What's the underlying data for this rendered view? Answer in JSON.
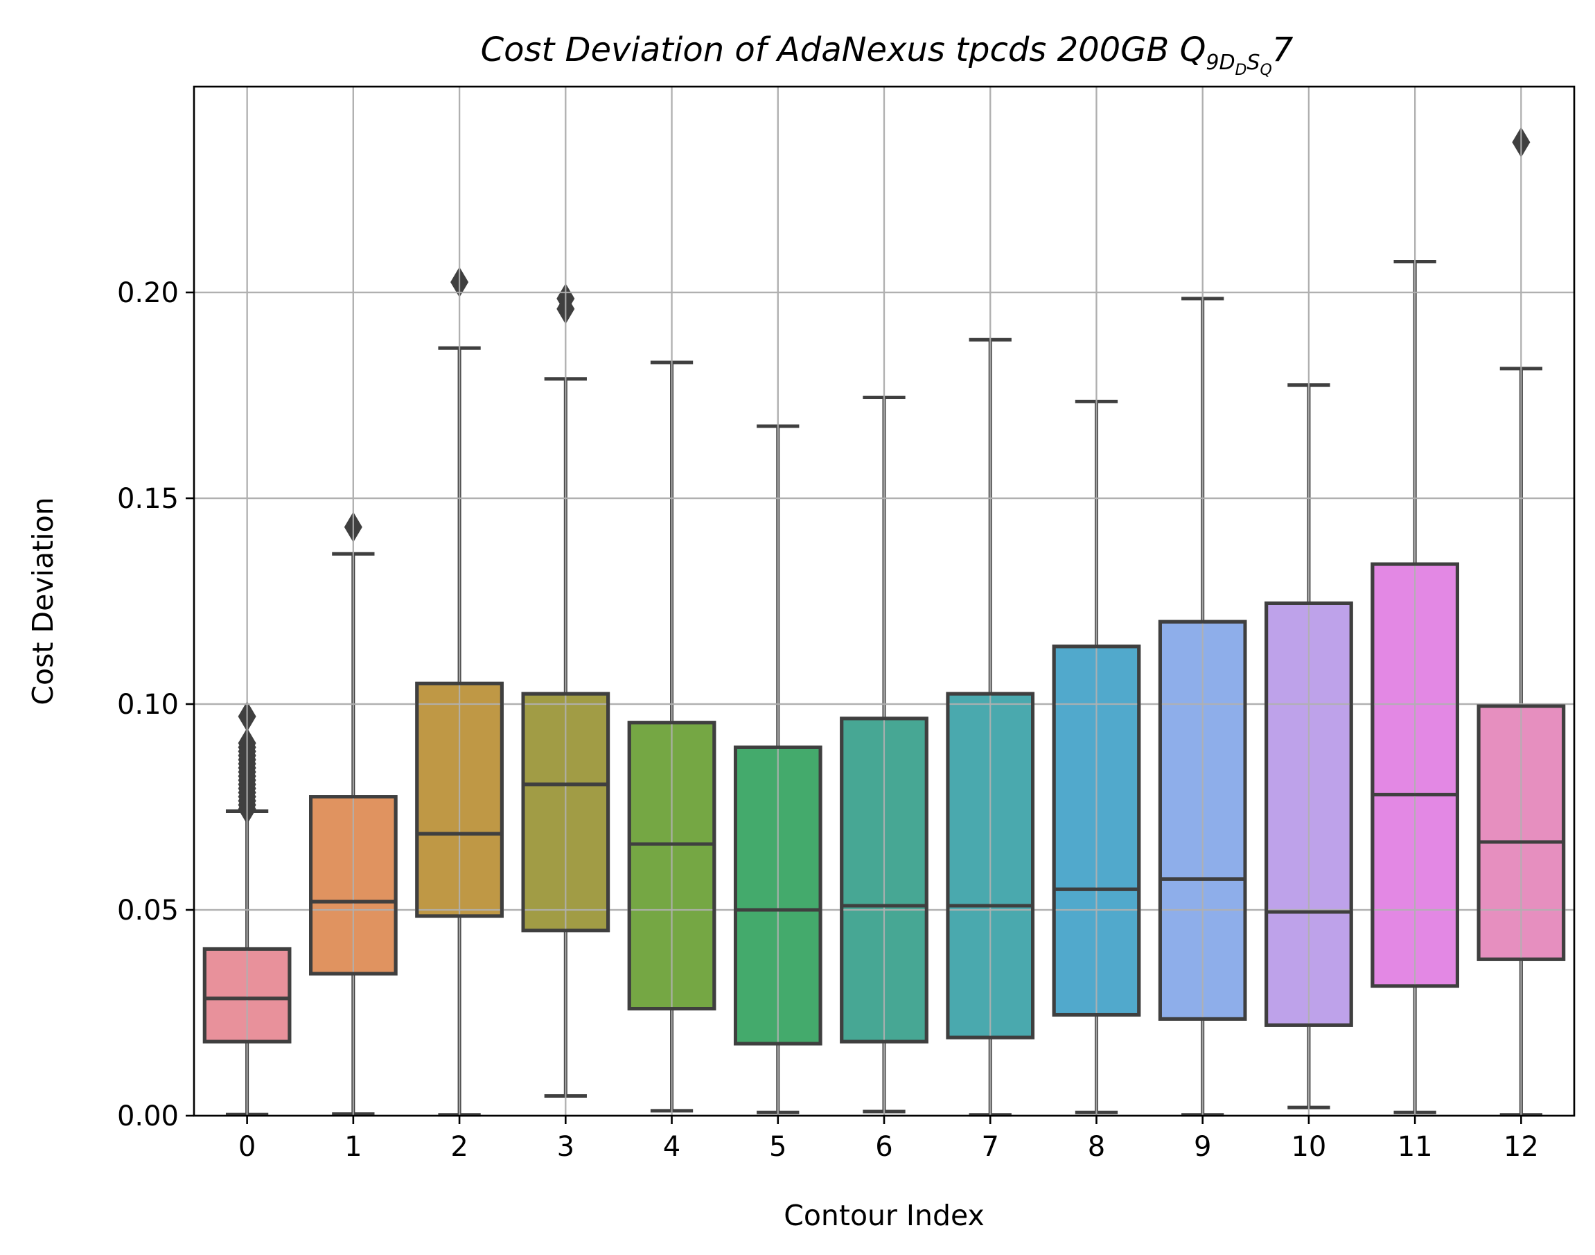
{
  "chart_data": {
    "type": "box",
    "title": "Cost Deviation of AdaNexus tpcds  200GB  Q",
    "title_subscript": "9D",
    "title_subscript2": "D",
    "title_sub_s": "S",
    "title_sub_q": "Q",
    "title_suffix": "7",
    "xlabel": "Contour Index",
    "ylabel": "Cost Deviation",
    "ylim": [
      0,
      0.25
    ],
    "yticks": [
      "0.00",
      "0.05",
      "0.10",
      "0.15",
      "0.20"
    ],
    "ytick_values": [
      0,
      0.05,
      0.1,
      0.15,
      0.2
    ],
    "grid": true,
    "categories": [
      "0",
      "1",
      "2",
      "3",
      "4",
      "5",
      "6",
      "7",
      "8",
      "9",
      "10",
      "11",
      "12"
    ],
    "boxes": [
      {
        "category": "0",
        "whislo": 0.0003,
        "q1": 0.018,
        "median": 0.0285,
        "q3": 0.0405,
        "whishi": 0.074,
        "color": "#e8919b",
        "fliers": [
          0.0745,
          0.0755,
          0.0765,
          0.0775,
          0.0785,
          0.0795,
          0.0805,
          0.0815,
          0.0825,
          0.0835,
          0.0845,
          0.0855,
          0.0865,
          0.0875,
          0.0885,
          0.0895,
          0.0905,
          0.097
        ]
      },
      {
        "category": "1",
        "whislo": 0.0004,
        "q1": 0.0345,
        "median": 0.052,
        "q3": 0.0775,
        "whishi": 0.1365,
        "color": "#e09360",
        "fliers": [
          0.143
        ]
      },
      {
        "category": "2",
        "whislo": 0.0002,
        "q1": 0.0485,
        "median": 0.0685,
        "q3": 0.105,
        "whishi": 0.1865,
        "color": "#bf9845",
        "fliers": [
          0.2025
        ]
      },
      {
        "category": "3",
        "whislo": 0.0048,
        "q1": 0.045,
        "median": 0.0805,
        "q3": 0.1025,
        "whishi": 0.179,
        "color": "#a19c45",
        "fliers": [
          0.196,
          0.1985
        ]
      },
      {
        "category": "4",
        "whislo": 0.0012,
        "q1": 0.026,
        "median": 0.066,
        "q3": 0.0955,
        "whishi": 0.183,
        "color": "#75a744",
        "fliers": []
      },
      {
        "category": "5",
        "whislo": 0.0008,
        "q1": 0.0175,
        "median": 0.05,
        "q3": 0.0895,
        "whishi": 0.1675,
        "color": "#44aa6c",
        "fliers": []
      },
      {
        "category": "6",
        "whislo": 0.001,
        "q1": 0.018,
        "median": 0.051,
        "q3": 0.0965,
        "whishi": 0.1745,
        "color": "#47a794",
        "fliers": []
      },
      {
        "category": "7",
        "whislo": 0.0002,
        "q1": 0.019,
        "median": 0.051,
        "q3": 0.1025,
        "whishi": 0.1885,
        "color": "#4aa9ae",
        "fliers": []
      },
      {
        "category": "8",
        "whislo": 0.0008,
        "q1": 0.0245,
        "median": 0.055,
        "q3": 0.114,
        "whishi": 0.1735,
        "color": "#51a9cc",
        "fliers": []
      },
      {
        "category": "9",
        "whislo": 0.0002,
        "q1": 0.0235,
        "median": 0.0575,
        "q3": 0.12,
        "whishi": 0.1985,
        "color": "#8eaeea",
        "fliers": []
      },
      {
        "category": "10",
        "whislo": 0.002,
        "q1": 0.022,
        "median": 0.0495,
        "q3": 0.1245,
        "whishi": 0.1775,
        "color": "#bea2ea",
        "fliers": []
      },
      {
        "category": "11",
        "whislo": 0.0008,
        "q1": 0.0315,
        "median": 0.078,
        "q3": 0.134,
        "whishi": 0.2075,
        "color": "#e388e4",
        "fliers": []
      },
      {
        "category": "12",
        "whislo": 0.0002,
        "q1": 0.038,
        "median": 0.0665,
        "q3": 0.0995,
        "whishi": 0.1815,
        "color": "#e68fbf",
        "fliers": [
          0.2365
        ]
      }
    ]
  }
}
